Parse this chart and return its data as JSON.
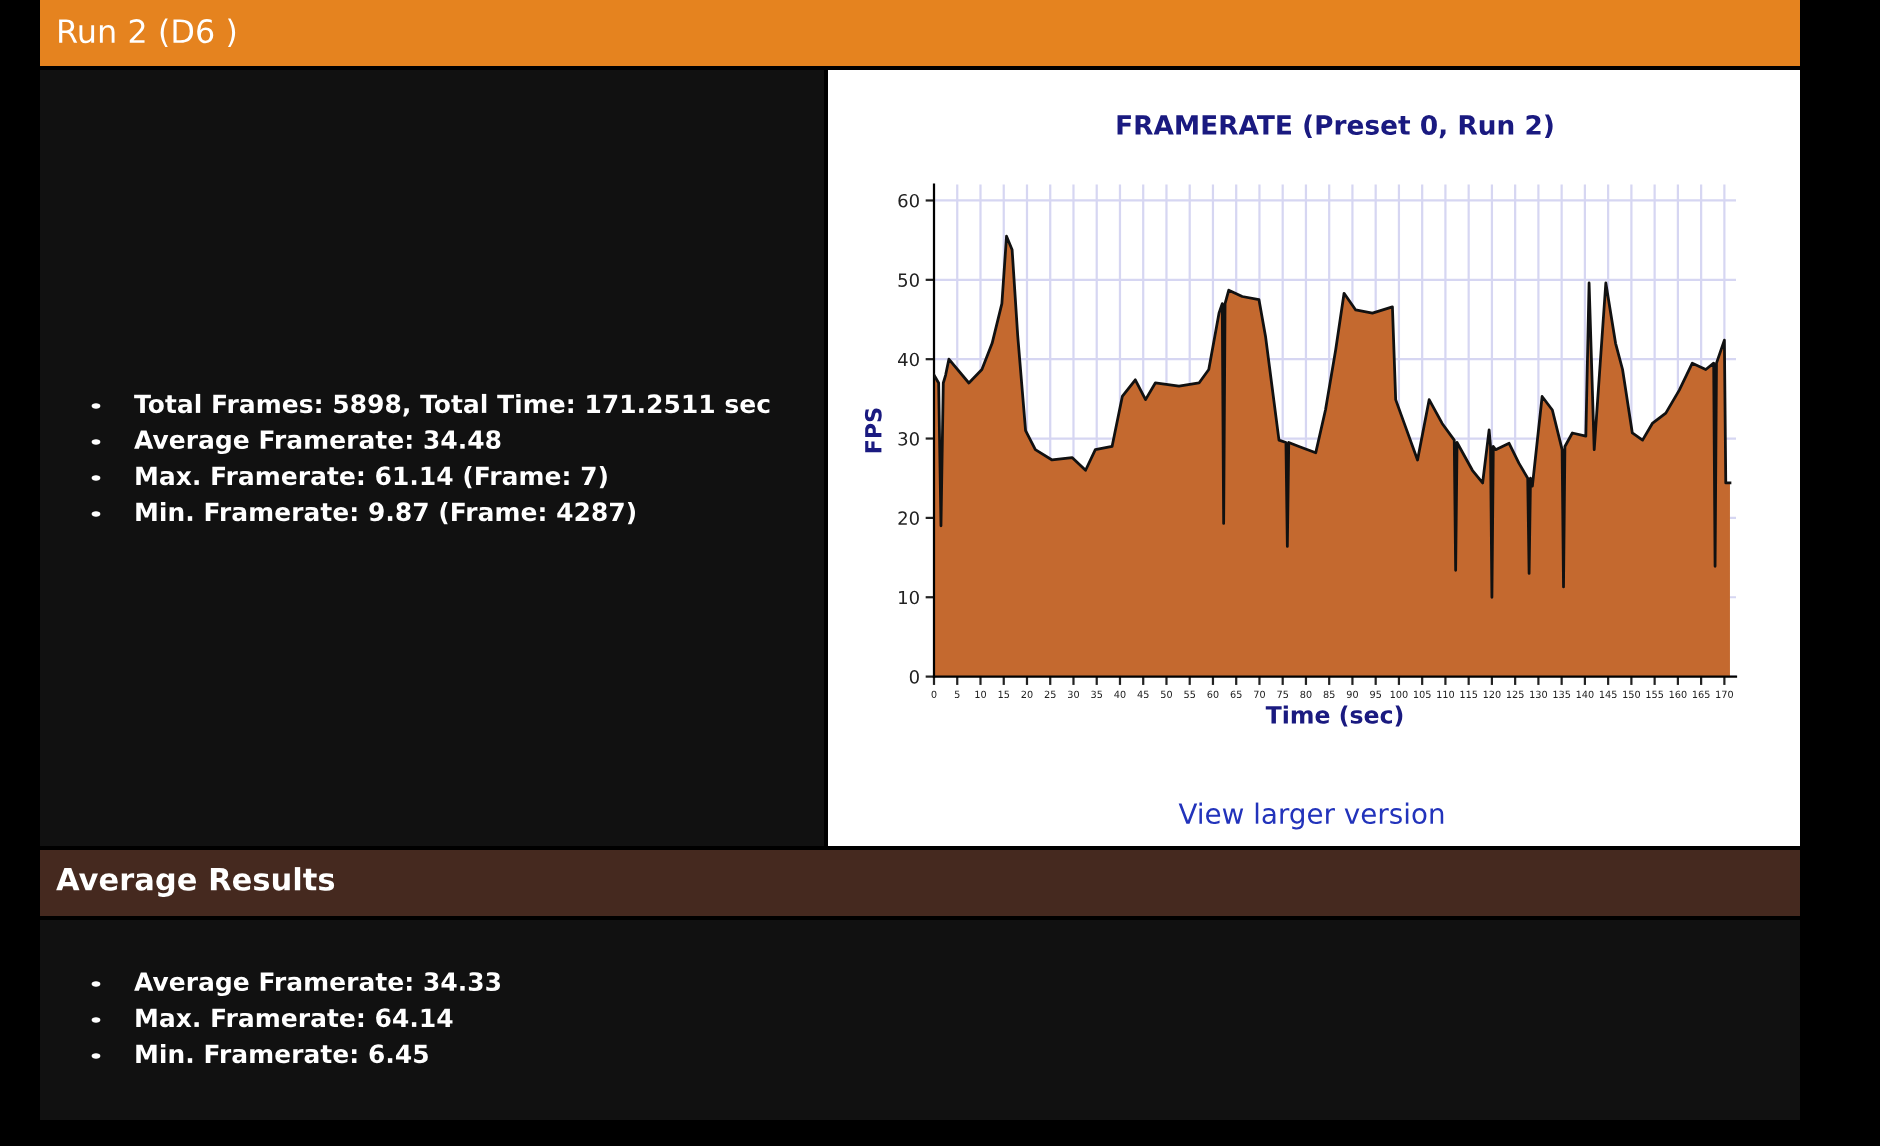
{
  "chart_data": {
    "type": "area",
    "title": "FRAMERATE (Preset 0, Run 2)",
    "xlabel": "Time (sec)",
    "ylabel": "FPS",
    "xlim": [
      0,
      172.5
    ],
    "ylim": [
      0,
      62
    ],
    "xticks": [
      0,
      5,
      10,
      15,
      20,
      25,
      30,
      35,
      40,
      45,
      50,
      55,
      60,
      65,
      70,
      75,
      80,
      85,
      90,
      95,
      100,
      105,
      110,
      115,
      120,
      125,
      130,
      135,
      140,
      145,
      150,
      155,
      160,
      165,
      170
    ],
    "yticks": [
      0,
      10,
      20,
      30,
      40,
      50,
      60
    ],
    "grid": true,
    "legend": false,
    "marker": "none",
    "line_style": "solid",
    "annotations": [
      "Run 2 (D6 )",
      "Total Frames: 5898, Total Time: 171.2511 sec",
      "Average Framerate: 34.48",
      "Max. Framerate: 61.14 (Frame: 7)",
      "Min. Framerate: 9.87 (Frame: 4287)",
      "View larger version",
      "Average Results",
      "Average Framerate: 34.33",
      "Max. Framerate: 64.14",
      "Min. Framerate: 6.45"
    ],
    "series": [
      {
        "color": "#c4692f",
        "x": [
          0,
          1,
          1.5,
          2,
          2.5,
          3.2,
          7.5,
          10.3,
          12.5,
          14.6,
          15.6,
          16.8,
          18,
          19.7,
          21.8,
          25.4,
          29.7,
          32.6,
          34.7,
          38.3,
          40.5,
          43.3,
          45.5,
          47.6,
          52.7,
          57,
          59.1,
          61.3,
          62.0,
          62.3,
          62.6,
          63.4,
          66.3,
          69.9,
          71.3,
          74.2,
          75.7,
          76,
          76.3,
          78.5,
          82.1,
          84.2,
          86.4,
          88.2,
          90.7,
          94.3,
          98.6,
          99.3,
          101.4,
          104,
          106.5,
          109.3,
          111.9,
          112.2,
          112.5,
          115.8,
          118,
          119.4,
          119.7,
          120,
          120.3,
          120.8,
          123.7,
          125.8,
          127.7,
          128,
          128.3,
          128.7,
          130.8,
          133,
          135.1,
          135.4,
          135.7,
          137.3,
          140.2,
          140.9,
          142,
          144.5,
          146.6,
          148.1,
          150.2,
          152.4,
          154.5,
          157.4,
          160.3,
          163.1,
          166,
          167.7,
          168,
          168.3,
          170,
          170.3,
          171.2
        ],
        "values": [
          38,
          37,
          19,
          37,
          38,
          40,
          37,
          38.7,
          42,
          47,
          55.5,
          53.8,
          43,
          31,
          28.6,
          27.3,
          27.6,
          26,
          28.6,
          29,
          35.3,
          37.4,
          34.9,
          37,
          36.6,
          37,
          38.7,
          45.8,
          47,
          19.3,
          47,
          48.7,
          47.9,
          47.5,
          42.9,
          29.8,
          29.5,
          16.4,
          29.5,
          29,
          28.2,
          33.6,
          41.2,
          48.3,
          46.2,
          45.8,
          46.6,
          34.9,
          31.5,
          27.3,
          34.9,
          31.9,
          29.8,
          13.4,
          29.5,
          26,
          24.4,
          31.1,
          29,
          10,
          29,
          28.6,
          29.4,
          26.9,
          25,
          13,
          25,
          24,
          35.3,
          33.6,
          28.6,
          11.3,
          29,
          30.7,
          30.3,
          49.6,
          28.6,
          49.6,
          42,
          38.7,
          30.7,
          29.8,
          31.9,
          33.2,
          36.1,
          39.5,
          38.7,
          39.5,
          13.9,
          39.5,
          42.4,
          24.4,
          24.4
        ]
      }
    ]
  }
}
